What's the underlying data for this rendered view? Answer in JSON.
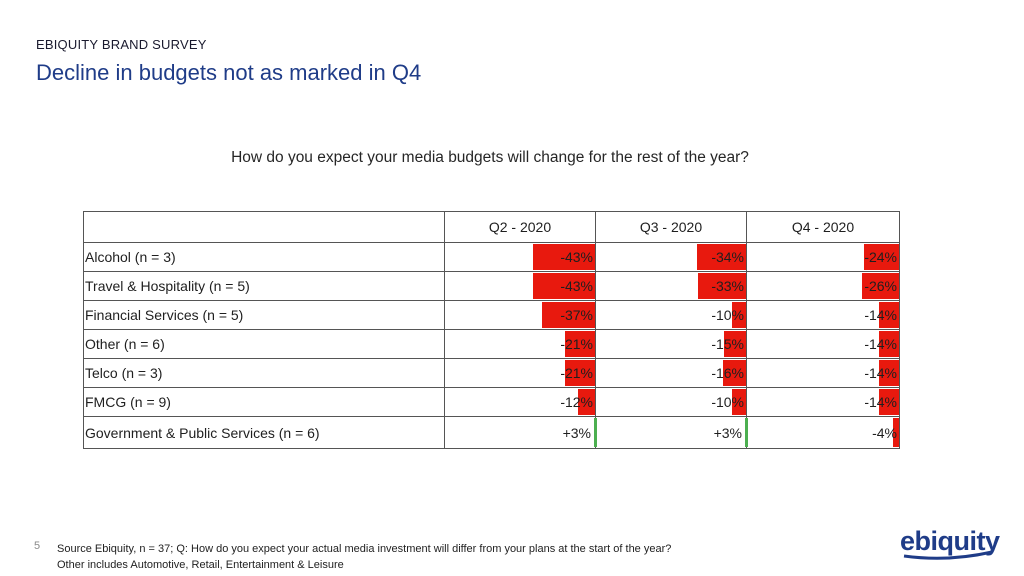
{
  "header": {
    "kicker": "EBIQUITY BRAND SURVEY",
    "title": "Decline in budgets not as marked in Q4"
  },
  "chart_data": {
    "type": "table",
    "title": "How do you expect your media budgets will change for the rest of the year?",
    "columns": [
      "Q2 - 2020",
      "Q3 - 2020",
      "Q4 - 2020"
    ],
    "rows": [
      {
        "label": "Alcohol (n = 3)",
        "values": [
          -43,
          -34,
          -24
        ],
        "display": [
          "-43%",
          "-34%",
          "-24%"
        ]
      },
      {
        "label": "Travel & Hospitality (n = 5)",
        "values": [
          -43,
          -33,
          -26
        ],
        "display": [
          "-43%",
          "-33%",
          "-26%"
        ]
      },
      {
        "label": "Financial Services (n = 5)",
        "values": [
          -37,
          -10,
          -14
        ],
        "display": [
          "-37%",
          "-10%",
          "-14%"
        ]
      },
      {
        "label": "Other (n = 6)",
        "values": [
          -21,
          -15,
          -14
        ],
        "display": [
          "-21%",
          "-15%",
          "-14%"
        ]
      },
      {
        "label": "Telco (n = 3)",
        "values": [
          -21,
          -16,
          -14
        ],
        "display": [
          "-21%",
          "-16%",
          "-14%"
        ]
      },
      {
        "label": "FMCG (n = 9)",
        "values": [
          -12,
          -10,
          -14
        ],
        "display": [
          "-12%",
          "-10%",
          "-14%"
        ]
      },
      {
        "label": "Government & Public Services (n = 6)",
        "values": [
          3,
          3,
          -4
        ],
        "display": [
          "+3%",
          "+3%",
          "-4%"
        ]
      }
    ],
    "scale_max": 43,
    "negative_color": "#e8190e",
    "positive_color": "#4caf50"
  },
  "footer": {
    "page_number": "5",
    "source": "Source Ebiquity, n = 37; Q: How do you expect your actual media investment will differ from your plans at the start of the year?",
    "note": "Other includes Automotive, Retail, Entertainment & Leisure",
    "logo_text": "ebiquity"
  }
}
